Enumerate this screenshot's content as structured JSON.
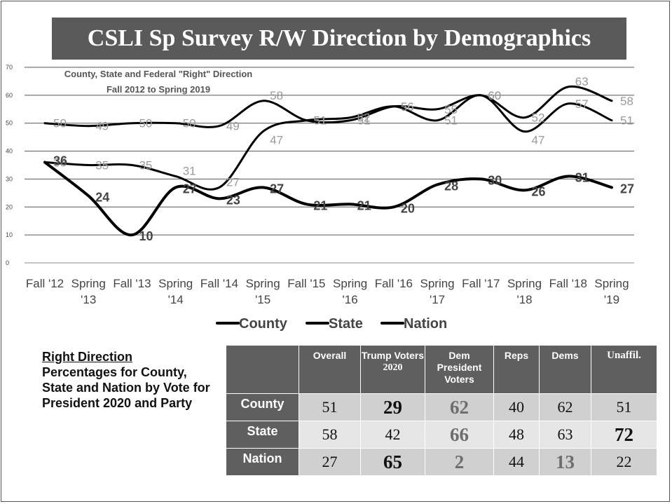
{
  "slide_title": "CSLI Sp Survey R/W Direction by Demographics",
  "chart_data": {
    "type": "line",
    "title": "County, State and Federal \"Right\" Direction",
    "subtitle": "Fall 2012 to Spring 2019",
    "categories": [
      [
        "Fall '12",
        ""
      ],
      [
        "Spring",
        "'13"
      ],
      [
        "Fall '13",
        ""
      ],
      [
        "Spring",
        "'14"
      ],
      [
        "Fall '14",
        ""
      ],
      [
        "Spring",
        "'15"
      ],
      [
        "Fall '15",
        ""
      ],
      [
        "Spring",
        "'16"
      ],
      [
        "Fall '16",
        ""
      ],
      [
        "Spring",
        "'17"
      ],
      [
        "Fall '17",
        ""
      ],
      [
        "Spring",
        "'18"
      ],
      [
        "Fall '18",
        ""
      ],
      [
        "Spring",
        "'19"
      ]
    ],
    "series": [
      {
        "name": "County",
        "values": [
          50,
          49,
          50,
          50,
          49,
          58,
          51,
          51,
          56,
          55,
          60,
          52,
          63,
          58
        ],
        "label_color": "#9a9a9a"
      },
      {
        "name": "State",
        "values": [
          36,
          35,
          35,
          31,
          27,
          47,
          51,
          52,
          56,
          51,
          60,
          47,
          57,
          51
        ],
        "label_color": "#9a9a9a"
      },
      {
        "name": "Nation",
        "values": [
          36,
          24,
          10,
          27,
          23,
          27,
          21,
          21,
          20,
          28,
          30,
          26,
          31,
          27
        ],
        "label_color": "#444444"
      }
    ],
    "ylim": [
      0,
      70
    ],
    "yticks": [
      0,
      10,
      20,
      30,
      40,
      50,
      60,
      70
    ],
    "grid": true,
    "legend": "bottom",
    "line_color": "#000000"
  },
  "table": {
    "left_caption_heading": "Right Direction",
    "left_caption_body": "Percentages for County, State and Nation by Vote for President 2020 and Party",
    "columns": [
      {
        "line1": "Overall",
        "line2": ""
      },
      {
        "line1": "Trump Voters",
        "line2": "2020"
      },
      {
        "line1": "Dem President Voters",
        "line2": ""
      },
      {
        "line1": "Reps",
        "line2": ""
      },
      {
        "line1": "Dems",
        "line2": ""
      },
      {
        "line1": "Unaffil.",
        "line2": ""
      }
    ],
    "rows": [
      {
        "label": "County",
        "cells": [
          "51",
          "29",
          "62",
          "40",
          "62",
          "51"
        ]
      },
      {
        "label": "State",
        "cells": [
          "58",
          "42",
          "66",
          "48",
          "63",
          "72"
        ]
      },
      {
        "label": "Nation",
        "cells": [
          "27",
          "65",
          "2",
          "44",
          "13",
          "22"
        ]
      }
    ]
  }
}
